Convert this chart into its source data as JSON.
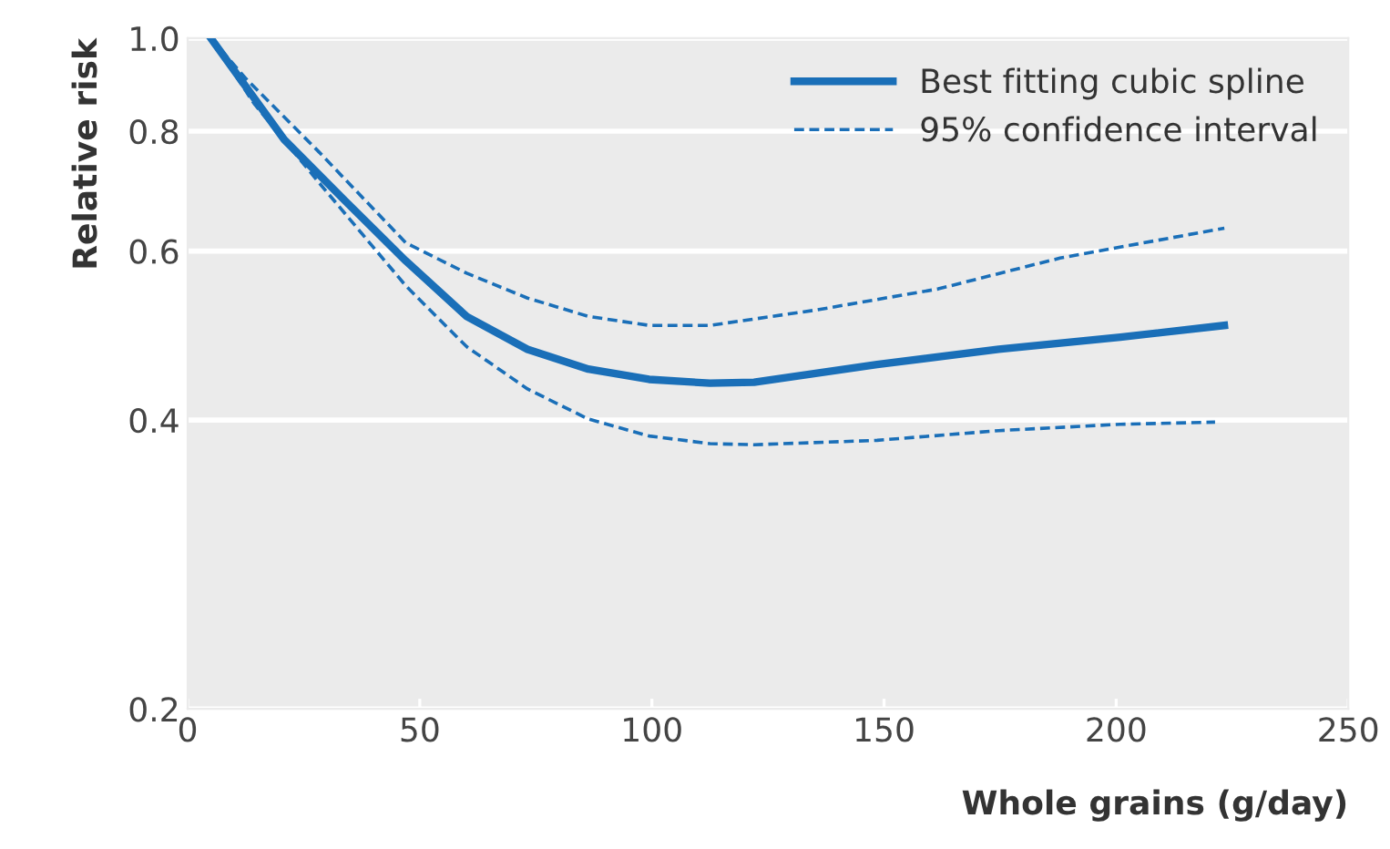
{
  "chart_data": {
    "type": "line",
    "xlabel": "Whole grains (g/day)",
    "ylabel": "Relative risk",
    "log": "y",
    "xlim": [
      0,
      250
    ],
    "xticks": [
      0,
      50,
      100,
      150,
      200,
      250
    ],
    "ylim": [
      0.2,
      1.0
    ],
    "yticks": [
      0.2,
      0.4,
      0.6,
      0.8,
      {
        "value": 1.0,
        "label": "1.0"
      }
    ],
    "grid": "y",
    "legend": "top right",
    "series": [
      {
        "name": "Best fitting cubic spline",
        "color": "#1a6fb8",
        "line_style": "solid",
        "x": [
          5,
          20.8,
          33.9,
          47,
          60.1,
          73.2,
          86.3,
          99.4,
          112.5,
          122,
          148.5,
          174.7,
          200.9,
          223.3
        ],
        "values": [
          1.0,
          0.784,
          0.677,
          0.586,
          0.513,
          0.474,
          0.452,
          0.441,
          0.437,
          0.438,
          0.457,
          0.474,
          0.488,
          0.502
        ]
      },
      {
        "name": "95% confidence interval",
        "color": "#1a6fb8",
        "line_style": "dashed",
        "x": [
          5,
          12.6,
          28.3,
          47,
          60.1,
          73.2,
          86.3,
          99.4,
          112.5,
          135.5,
          161.7,
          187.9,
          223.3
        ],
        "values": [
          1.0,
          0.907,
          0.761,
          0.612,
          0.569,
          0.536,
          0.513,
          0.502,
          0.502,
          0.521,
          0.548,
          0.59,
          0.634
        ]
      },
      {
        "color": "#1a6fb8",
        "line_style": "dashed",
        "x": [
          5,
          14.3,
          28.3,
          47,
          60.1,
          73.2,
          86.3,
          99.4,
          112.5,
          122,
          148.5,
          174.7,
          200.9,
          221.3
        ],
        "values": [
          1.0,
          0.855,
          0.707,
          0.552,
          0.477,
          0.431,
          0.401,
          0.385,
          0.378,
          0.377,
          0.381,
          0.39,
          0.396,
          0.398
        ]
      }
    ]
  }
}
